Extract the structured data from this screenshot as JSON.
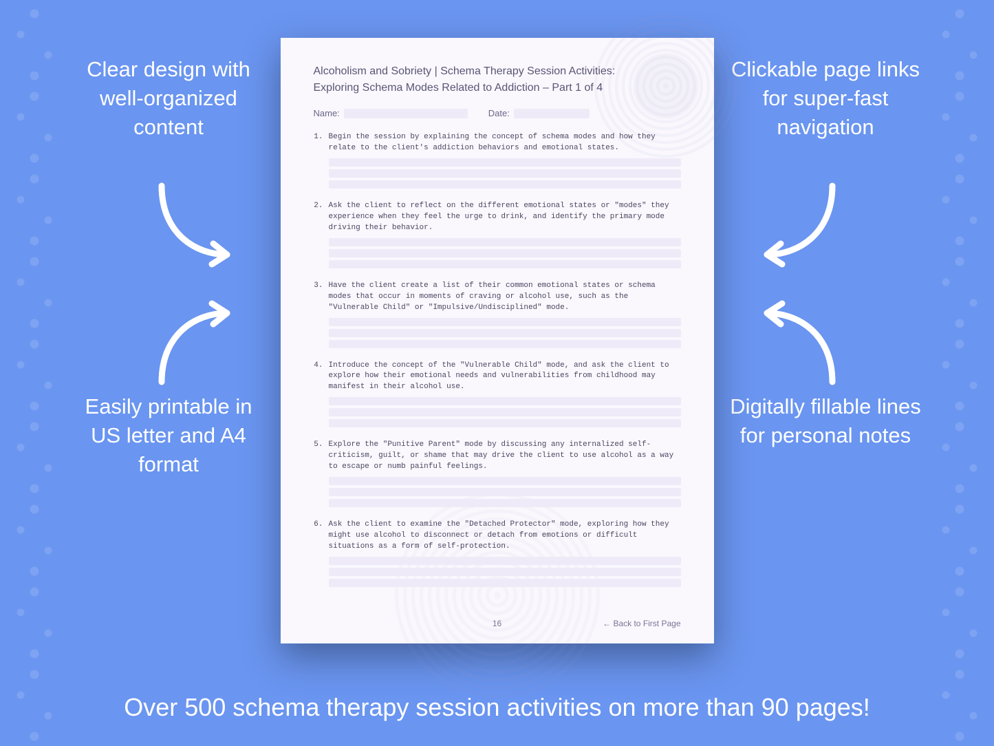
{
  "colors": {
    "background": "#6a95f0",
    "page_bg": "#faf8fd",
    "fill_line": "#efeaf8",
    "text_white": "#ffffff",
    "page_text": "#4a4660",
    "page_heading": "#5a5575"
  },
  "features": {
    "top_left": "Clear design with well-organized content",
    "top_right": "Clickable page links for super-fast navigation",
    "bottom_left": "Easily printable in US letter and A4 format",
    "bottom_right": "Digitally fillable lines for personal notes"
  },
  "bottom_tagline": "Over 500 schema therapy session activities on more than 90 pages!",
  "page": {
    "title_line1": "Alcoholism and Sobriety | Schema Therapy Session Activities:",
    "title_line2": "Exploring Schema Modes Related to Addiction  – Part 1 of 4",
    "name_label": "Name:",
    "date_label": "Date:",
    "page_number": "16",
    "back_link": "← Back to First Page",
    "items": [
      "Begin the session by explaining the concept of schema modes and how they relate to the client's addiction behaviors and emotional states.",
      "Ask the client to reflect on the different emotional states or \"modes\" they experience when they feel the urge to drink, and identify the primary mode driving their behavior.",
      "Have the client create a list of their common emotional states or schema modes that occur in moments of craving or alcohol use, such as the \"Vulnerable Child\" or \"Impulsive/Undisciplined\" mode.",
      "Introduce the concept of the \"Vulnerable Child\" mode, and ask the client to explore how their emotional needs and vulnerabilities from childhood may manifest in their alcohol use.",
      "Explore the \"Punitive Parent\" mode by discussing any internalized self-criticism, guilt, or shame that may drive the client to use alcohol as a way to escape or numb painful feelings.",
      "Ask the client to examine the \"Detached Protector\" mode, exploring how they might use alcohol to disconnect or detach from emotions or difficult situations as a form of self-protection."
    ]
  }
}
